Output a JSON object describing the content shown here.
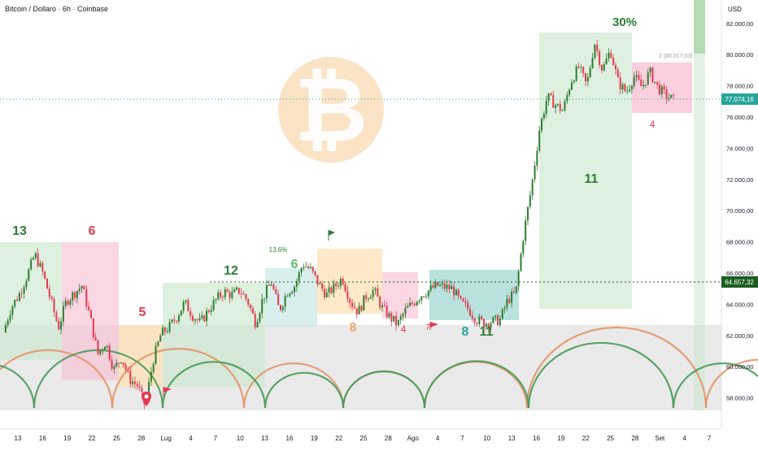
{
  "header": {
    "title": "Bitcoin / Dollaro · 6h · Coinbase"
  },
  "price_axis": {
    "currency": "USD",
    "current_price": "77.074,16",
    "level_price": "64.657,32",
    "current_color": "#26a69a",
    "level_color": "#1b5e20"
  },
  "annotations": {
    "gain_label": "30%",
    "target_label": "2 (80.017,03)",
    "pct_label": "13.6%"
  },
  "colors": {
    "up": "#2e7d32",
    "down": "#e53950",
    "orange": "#f08c00",
    "green_arc": "#4a9b5a",
    "orange_arc": "#e6956a",
    "btc_logo": "#f5a623"
  },
  "chart_data": {
    "type": "candlestick",
    "title": "Bitcoin / Dollaro · 6h · Coinbase",
    "y_axis": {
      "ticks": [
        "82.000,00",
        "80.000,00",
        "78.000,00",
        "76.000,00",
        "74.000,00",
        "72.000,00",
        "70.000,00",
        "68.000,00",
        "66.000,00",
        "64.000,00",
        "62.000,00",
        "60.000,00",
        "58.000,00"
      ],
      "tick_values": [
        82000,
        80000,
        78000,
        76000,
        74000,
        72000,
        70000,
        68000,
        66000,
        64000,
        62000,
        60000,
        58000
      ],
      "range": [
        56000,
        83500
      ]
    },
    "x_axis": {
      "ticks": [
        "13",
        "16",
        "19",
        "22",
        "25",
        "28",
        "Lug",
        "4",
        "7",
        "10",
        "13",
        "16",
        "19",
        "22",
        "25",
        "28",
        "Ago",
        "4",
        "7",
        "10",
        "13",
        "16",
        "19",
        "22",
        "25",
        "28",
        "Set",
        "4",
        "7"
      ]
    },
    "price_path": [
      [
        0,
        62200
      ],
      [
        1,
        63800
      ],
      [
        2,
        64600
      ],
      [
        3,
        65800
      ],
      [
        4,
        67200
      ],
      [
        5,
        66000
      ],
      [
        6,
        64300
      ],
      [
        7,
        62500
      ],
      [
        8,
        64200
      ],
      [
        9,
        64700
      ],
      [
        10,
        65200
      ],
      [
        11,
        63200
      ],
      [
        12,
        60800
      ],
      [
        13,
        61600
      ],
      [
        14,
        59800
      ],
      [
        15,
        60600
      ],
      [
        16,
        59200
      ],
      [
        17,
        58800
      ],
      [
        18,
        57500
      ],
      [
        19,
        60400
      ],
      [
        20,
        62100
      ],
      [
        21,
        62500
      ],
      [
        22,
        63200
      ],
      [
        23,
        64100
      ],
      [
        24,
        63300
      ],
      [
        25,
        62800
      ],
      [
        26,
        63600
      ],
      [
        27,
        64300
      ],
      [
        28,
        64800
      ],
      [
        29,
        64600
      ],
      [
        30,
        64900
      ],
      [
        31,
        64200
      ],
      [
        32,
        62800
      ],
      [
        33,
        64500
      ],
      [
        34,
        65400
      ],
      [
        35,
        63600
      ],
      [
        36,
        64800
      ],
      [
        37,
        65200
      ],
      [
        38,
        66600
      ],
      [
        39,
        66200
      ],
      [
        40,
        65300
      ],
      [
        41,
        64600
      ],
      [
        42,
        65100
      ],
      [
        43,
        65700
      ],
      [
        44,
        64200
      ],
      [
        45,
        63500
      ],
      [
        46,
        64500
      ],
      [
        47,
        64900
      ],
      [
        48,
        63800
      ],
      [
        49,
        63200
      ],
      [
        50,
        62700
      ],
      [
        51,
        63600
      ],
      [
        52,
        64100
      ],
      [
        53,
        64600
      ],
      [
        54,
        64900
      ],
      [
        55,
        65200
      ],
      [
        56,
        65100
      ],
      [
        57,
        65000
      ],
      [
        58,
        64100
      ],
      [
        59,
        63700
      ],
      [
        60,
        63000
      ],
      [
        61,
        62800
      ],
      [
        62,
        62900
      ],
      [
        63,
        63000
      ],
      [
        64,
        64300
      ],
      [
        65,
        64700
      ],
      [
        66,
        68500
      ],
      [
        67,
        71500
      ],
      [
        68,
        75200
      ],
      [
        69,
        77300
      ],
      [
        70,
        76800
      ],
      [
        71,
        76400
      ],
      [
        72,
        78300
      ],
      [
        73,
        79200
      ],
      [
        74,
        78000
      ],
      [
        75,
        80800
      ],
      [
        76,
        79000
      ],
      [
        77,
        80300
      ],
      [
        78,
        78200
      ],
      [
        79,
        77600
      ],
      [
        80,
        78600
      ],
      [
        81,
        77900
      ],
      [
        82,
        78900
      ],
      [
        83,
        77900
      ],
      [
        84,
        77400
      ],
      [
        85,
        77074
      ]
    ],
    "cycle_counts": [
      "13",
      "6",
      "5",
      "12",
      "6",
      "8",
      "4",
      "7",
      "8",
      "11",
      "11",
      "4"
    ],
    "gain_label": "30%",
    "target_label": "2 (80.017,03)",
    "pct_label": "13.6%",
    "current_price": 77074.16,
    "level_price": 64657.32
  }
}
